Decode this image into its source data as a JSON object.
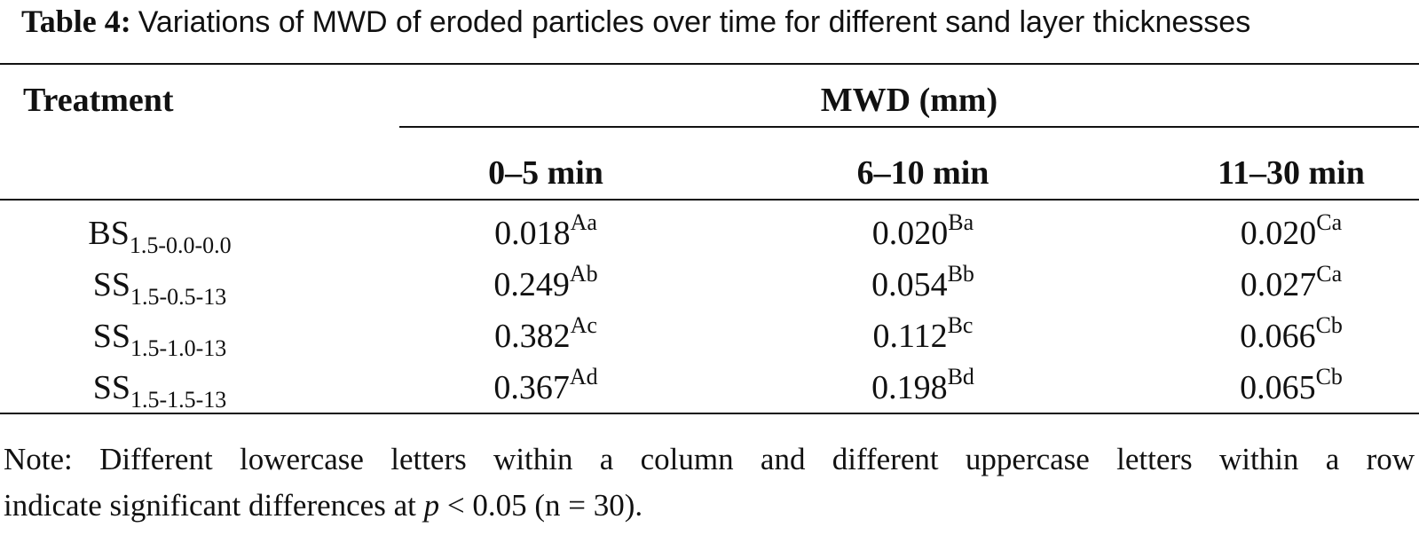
{
  "caption": {
    "label": "Table 4:",
    "text": "Variations of MWD of eroded particles over time for different sand layer thicknesses"
  },
  "header": {
    "treatment": "Treatment",
    "group": "MWD (mm)",
    "columns": [
      "0–5 min",
      "6–10 min",
      "11–30 min"
    ]
  },
  "rows": [
    {
      "treatment": {
        "base": "BS",
        "sub": "1.5-0.0-0.0"
      },
      "values": [
        {
          "value": "0.018",
          "letters": "Aa"
        },
        {
          "value": "0.020",
          "letters": "Ba"
        },
        {
          "value": "0.020",
          "letters": "Ca"
        }
      ]
    },
    {
      "treatment": {
        "base": "SS",
        "sub": "1.5-0.5-13"
      },
      "values": [
        {
          "value": "0.249",
          "letters": "Ab"
        },
        {
          "value": "0.054",
          "letters": "Bb"
        },
        {
          "value": "0.027",
          "letters": "Ca"
        }
      ]
    },
    {
      "treatment": {
        "base": "SS",
        "sub": "1.5-1.0-13"
      },
      "values": [
        {
          "value": "0.382",
          "letters": "Ac"
        },
        {
          "value": "0.112",
          "letters": "Bc"
        },
        {
          "value": "0.066",
          "letters": "Cb"
        }
      ]
    },
    {
      "treatment": {
        "base": "SS",
        "sub": "1.5-1.5-13"
      },
      "values": [
        {
          "value": "0.367",
          "letters": "Ad"
        },
        {
          "value": "0.198",
          "letters": "Bd"
        },
        {
          "value": "0.065",
          "letters": "Cb"
        }
      ]
    }
  ],
  "note": {
    "line1": "Note: Different lowercase letters within a column and different uppercase letters within a row",
    "line2_pre": "indicate significant differences at ",
    "line2_var": "p",
    "line2_post": " < 0.05 (n = 30)."
  }
}
